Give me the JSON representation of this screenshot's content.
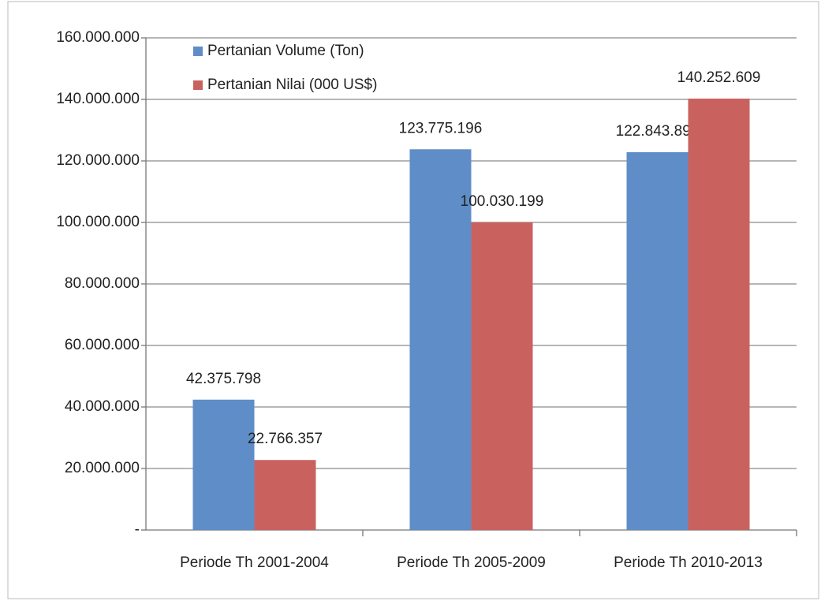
{
  "chart_data": {
    "type": "bar",
    "categories": [
      "Periode Th 2001-2004",
      "Periode Th 2005-2009",
      "Periode Th 2010-2013"
    ],
    "series": [
      {
        "name": "Pertanian Volume (Ton)",
        "color": "#5f8dc8",
        "values": [
          42375798,
          123775196,
          122843898
        ],
        "value_labels": [
          "42.375.798",
          "123.775.196",
          "122.843.898"
        ]
      },
      {
        "name": "Pertanian Nilai (000 US$)",
        "color": "#c9625f",
        "values": [
          22766357,
          100030199,
          140252609
        ],
        "value_labels": [
          "22.766.357",
          "100.030.199",
          "140.252.609"
        ]
      }
    ],
    "ylim": [
      0,
      160000000
    ],
    "yticks": [
      {
        "value": 0,
        "label": "-"
      },
      {
        "value": 20000000,
        "label": "20.000.000"
      },
      {
        "value": 40000000,
        "label": "40.000.000"
      },
      {
        "value": 60000000,
        "label": "60.000.000"
      },
      {
        "value": 80000000,
        "label": "80.000.000"
      },
      {
        "value": 100000000,
        "label": "100.000.000"
      },
      {
        "value": 120000000,
        "label": "120.000.000"
      },
      {
        "value": 140000000,
        "label": "140.000.000"
      },
      {
        "value": 160000000,
        "label": "160.000.000"
      }
    ],
    "grid": true,
    "legend": "top-left"
  }
}
